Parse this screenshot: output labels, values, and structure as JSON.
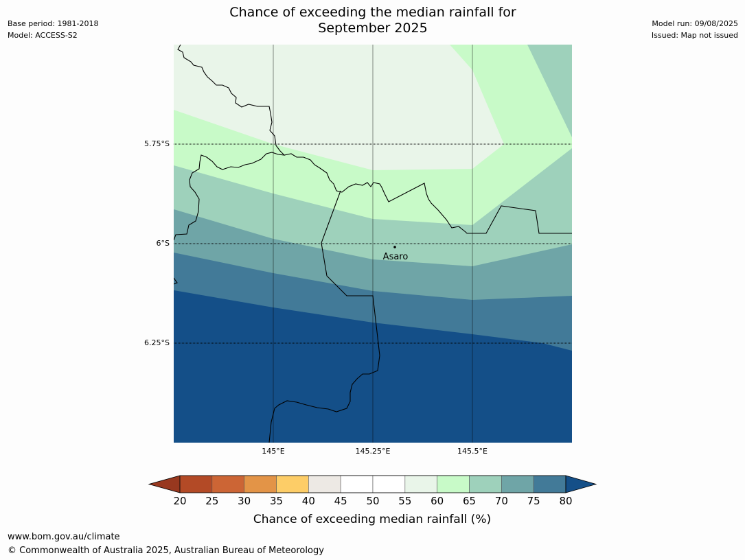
{
  "header": {
    "title_line1": "Chance of exceeding the median rainfall for",
    "title_line2": "September 2025",
    "base_period": "Base period: 1981-2018",
    "model": "Model: ACCESS-S2",
    "model_run": "Model run: 09/08/2025",
    "issued": "Issued: Map not issued"
  },
  "map": {
    "place": "Asaro",
    "lat_labels": [
      "5.75°S",
      "6°S",
      "6.25°S"
    ],
    "lon_labels": [
      "145°E",
      "145.25°E",
      "145.5°E"
    ]
  },
  "colorbar": {
    "title": "Chance of exceeding median rainfall (%)",
    "ticks": [
      "20",
      "25",
      "30",
      "35",
      "40",
      "45",
      "50",
      "55",
      "60",
      "65",
      "70",
      "75",
      "80"
    ],
    "colors": [
      "#b34a26",
      "#cc6535",
      "#e39447",
      "#fdcd67",
      "#ede9e4",
      "#ffffff",
      "#ffffff",
      "#e9f5e9",
      "#c8fac8",
      "#9ed1bb",
      "#6fa5a7",
      "#427a98"
    ],
    "under_color": "#98381f",
    "over_color": "#144f88"
  },
  "footer": {
    "url": "www.bom.gov.au/climate",
    "copyright": "© Commonwealth of Australia 2025, Australian Bureau of Meteorology"
  }
}
